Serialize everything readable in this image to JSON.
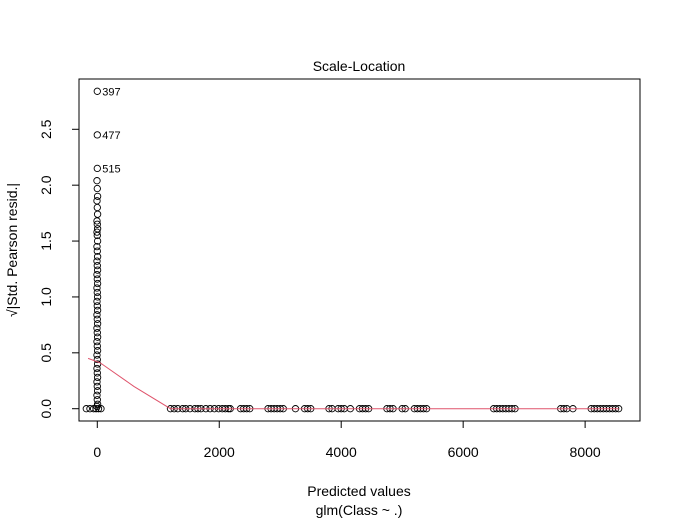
{
  "chart_data": {
    "type": "scatter",
    "title": "Scale-Location",
    "xlabel": "Predicted values",
    "sublabel": "glm(Class ~ .)",
    "ylabel": "√|Std. Pearson resid.|",
    "xlim": [
      -300,
      8900
    ],
    "ylim": [
      -0.11,
      2.95
    ],
    "x_ticks": [
      0,
      2000,
      4000,
      6000,
      8000
    ],
    "y_ticks": [
      0.0,
      0.5,
      1.0,
      1.5,
      2.0,
      2.5
    ],
    "x_tick_labels": [
      "0",
      "2000",
      "4000",
      "6000",
      "8000"
    ],
    "y_tick_labels": [
      "0.0",
      "0.5",
      "1.0",
      "1.5",
      "2.0",
      "2.5"
    ],
    "grid": false,
    "point_color": "#000000",
    "smooth_color": "#DF536B",
    "labeled_points": [
      {
        "label": "397",
        "x": 0,
        "y": 2.84
      },
      {
        "label": "477",
        "x": 0,
        "y": 2.45
      },
      {
        "label": "515",
        "x": 0,
        "y": 2.15
      }
    ],
    "column_points_y": [
      2.04,
      1.97,
      1.9,
      1.86,
      1.8,
      1.74,
      1.68,
      1.65,
      1.61,
      1.58,
      1.55,
      1.5,
      1.45,
      1.41,
      1.36,
      1.32,
      1.28,
      1.24,
      1.2,
      1.16,
      1.12,
      1.08,
      1.04,
      1.0,
      0.96,
      0.92,
      0.88,
      0.84,
      0.8,
      0.76,
      0.72,
      0.68,
      0.64,
      0.6,
      0.56,
      0.52,
      0.48,
      0.44,
      0.4,
      0.36,
      0.32,
      0.28,
      0.24,
      0.2,
      0.16,
      0.12,
      0.08,
      0.04,
      0.02
    ],
    "near_zero_points": [
      {
        "x": -180,
        "y": 0.0
      },
      {
        "x": -120,
        "y": 0.0
      },
      {
        "x": -60,
        "y": 0.0
      },
      {
        "x": -20,
        "y": 0.0
      },
      {
        "x": 20,
        "y": 0.0
      },
      {
        "x": 60,
        "y": 0.0
      }
    ],
    "zero_points_x": [
      1200,
      1260,
      1320,
      1400,
      1450,
      1520,
      1600,
      1650,
      1700,
      1780,
      1850,
      1920,
      1990,
      2050,
      2100,
      2150,
      2180,
      2350,
      2400,
      2450,
      2500,
      2800,
      2850,
      2900,
      2950,
      3000,
      3050,
      3250,
      3400,
      3450,
      3500,
      3800,
      3850,
      3950,
      4000,
      4050,
      4150,
      4300,
      4350,
      4400,
      4450,
      4750,
      4800,
      4850,
      5000,
      5050,
      5200,
      5250,
      5300,
      5350,
      5400,
      6500,
      6550,
      6600,
      6650,
      6700,
      6750,
      6800,
      6850,
      7600,
      7650,
      7700,
      7800,
      8100,
      8150,
      8200,
      8250,
      8300,
      8350,
      8400,
      8450,
      8500,
      8550
    ],
    "smooth_line": [
      {
        "x": -150,
        "y": 0.45
      },
      {
        "x": 50,
        "y": 0.41
      },
      {
        "x": 600,
        "y": 0.2
      },
      {
        "x": 1200,
        "y": 0.0
      },
      {
        "x": 8550,
        "y": 0.0
      }
    ]
  }
}
